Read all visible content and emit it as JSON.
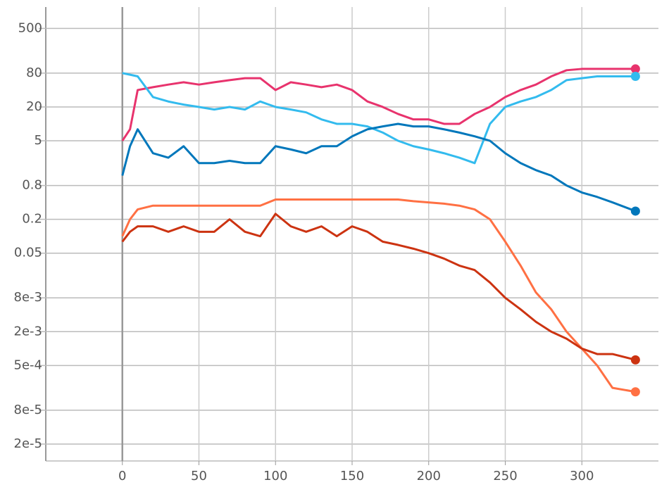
{
  "chart_data": {
    "type": "line",
    "log_y": true,
    "grid": true,
    "xlim": [
      -50,
      350
    ],
    "xticks": [
      0,
      50,
      100,
      150,
      200,
      250,
      300
    ],
    "ylim": [
      1e-05,
      1200
    ],
    "yticks": [
      500,
      80,
      20,
      5,
      0.8,
      0.2,
      0.05,
      {
        "value": 0.008,
        "label": "8e-3"
      },
      {
        "value": 0.002,
        "label": "2e-3"
      },
      {
        "value": 0.0005,
        "label": "5e-4"
      },
      {
        "value": 8e-05,
        "label": "8e-5"
      },
      {
        "value": 2e-05,
        "label": "2e-5"
      }
    ],
    "x": [
      0,
      5,
      10,
      20,
      30,
      40,
      50,
      60,
      70,
      80,
      90,
      100,
      110,
      120,
      130,
      140,
      150,
      160,
      170,
      180,
      190,
      200,
      210,
      220,
      230,
      240,
      250,
      260,
      270,
      280,
      290,
      300,
      310,
      320,
      335
    ],
    "series": [
      {
        "color": "#e8336d",
        "values": [
          5,
          8,
          40,
          45,
          50,
          55,
          50,
          55,
          60,
          65,
          65,
          40,
          55,
          50,
          45,
          50,
          40,
          25,
          20,
          15,
          12,
          12,
          10,
          10,
          15,
          20,
          30,
          40,
          50,
          70,
          90,
          95,
          95,
          95,
          95
        ]
      },
      {
        "color": "#33bbee",
        "values": [
          80,
          75,
          70,
          30,
          25,
          22,
          20,
          18,
          20,
          18,
          25,
          20,
          18,
          16,
          12,
          10,
          10,
          9,
          7,
          5,
          4,
          3.5,
          3,
          2.5,
          2,
          10,
          20,
          25,
          30,
          40,
          60,
          65,
          70,
          70,
          70
        ]
      },
      {
        "color": "#0077bb",
        "values": [
          1.2,
          4,
          8,
          3,
          2.5,
          4,
          2,
          2,
          2.2,
          2,
          2,
          4,
          3.5,
          3,
          4,
          4,
          6,
          8,
          9,
          10,
          9,
          9,
          8,
          7,
          6,
          5,
          3,
          2,
          1.5,
          1.2,
          0.8,
          0.6,
          0.5,
          0.4,
          0.28
        ]
      },
      {
        "color": "#ff7043",
        "values": [
          0.1,
          0.2,
          0.3,
          0.35,
          0.35,
          0.35,
          0.35,
          0.35,
          0.35,
          0.35,
          0.35,
          0.45,
          0.45,
          0.45,
          0.45,
          0.45,
          0.45,
          0.45,
          0.45,
          0.45,
          0.42,
          0.4,
          0.38,
          0.35,
          0.3,
          0.2,
          0.08,
          0.03,
          0.01,
          0.005,
          0.002,
          0.001,
          0.0005,
          0.0002,
          0.00017
        ]
      },
      {
        "color": "#cc3311",
        "values": [
          0.08,
          0.12,
          0.15,
          0.15,
          0.12,
          0.15,
          0.12,
          0.12,
          0.2,
          0.12,
          0.1,
          0.25,
          0.15,
          0.12,
          0.15,
          0.1,
          0.15,
          0.12,
          0.08,
          0.07,
          0.06,
          0.05,
          0.04,
          0.03,
          0.025,
          0.015,
          0.008,
          0.005,
          0.003,
          0.002,
          0.0015,
          0.001,
          0.0008,
          0.0008,
          0.00063
        ]
      }
    ]
  }
}
